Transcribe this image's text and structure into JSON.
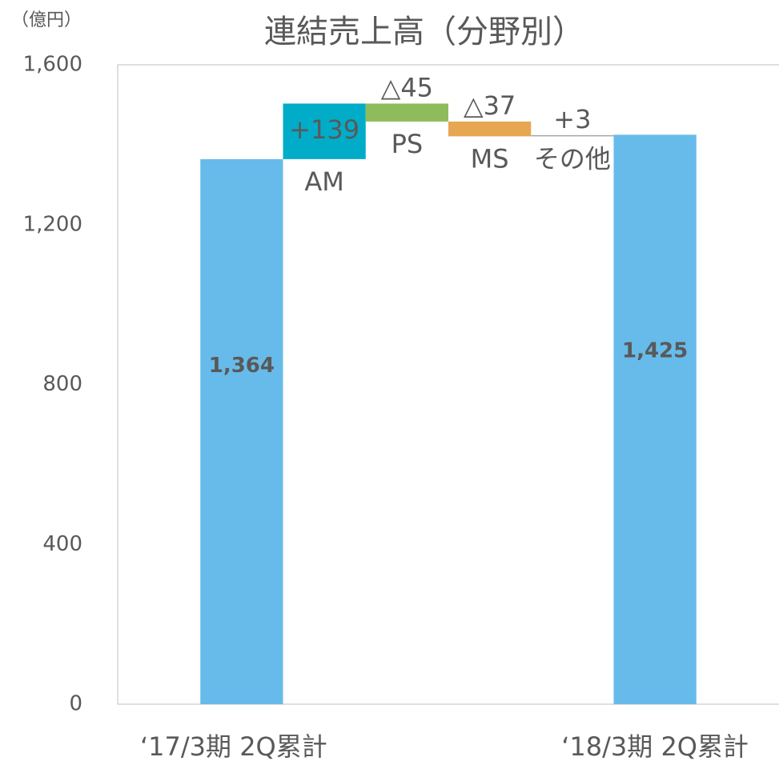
{
  "chart_data": {
    "type": "waterfall",
    "title": "連結売上高（分野別）",
    "y_label": "（億円）",
    "categories": [
      "‘17/3期 2Q累計",
      "AM",
      "PS",
      "MS",
      "その他",
      "‘18/3期 2Q累計"
    ],
    "measures": [
      "absolute",
      "relative",
      "relative",
      "relative",
      "relative",
      "total"
    ],
    "values": [
      1364,
      139,
      -45,
      -37,
      3,
      1425
    ],
    "value_labels": [
      "1,364",
      "+139",
      "△45",
      "△37",
      "+3",
      "1,425"
    ],
    "colors": [
      "#67bbea",
      "#00acc8",
      "#8fbc5a",
      "#e6a652",
      "#a6a6a6",
      "#67bbea"
    ],
    "ylim": [
      0,
      1600
    ],
    "yticks": [
      0,
      400,
      800,
      {
        "value": 1200,
        "label": "1,200"
      },
      {
        "value": 1600,
        "label": "1,600"
      }
    ],
    "grid": false
  }
}
